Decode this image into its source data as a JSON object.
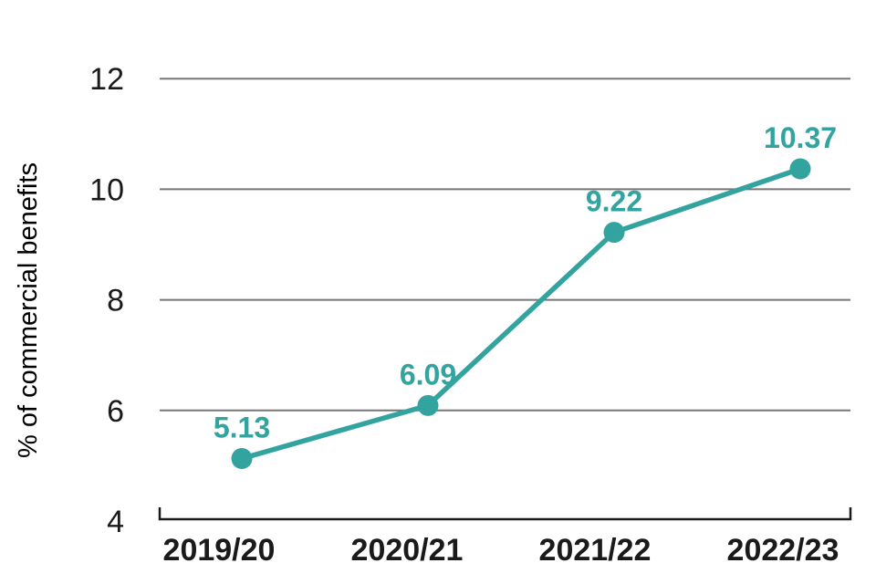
{
  "chart_data": {
    "type": "line",
    "title": "",
    "xlabel": "",
    "ylabel": "% of commercial benefits",
    "categories": [
      "2019/20",
      "2020/21",
      "2021/22",
      "2022/23"
    ],
    "series": [
      {
        "name": "% of commercial benefits",
        "values": [
          5.13,
          6.09,
          9.22,
          10.37
        ]
      }
    ],
    "data_labels": [
      "5.13",
      "6.09",
      "9.22",
      "10.37"
    ],
    "y_ticks": [
      12,
      10,
      8,
      6,
      4
    ],
    "y_tick_labels": [
      "12",
      "10",
      "8",
      "6",
      "4"
    ],
    "ylim": [
      4,
      12
    ],
    "grid": "horizontal-gridlines-only",
    "legend": "none",
    "axis_style": "bottom-bracket-range-frame",
    "colors": {
      "accent_teal": "#33a3a0",
      "gridline": "#767676",
      "axis": "#1a1a1a",
      "text": "#1a1a1a",
      "background": "#ffffff"
    }
  }
}
